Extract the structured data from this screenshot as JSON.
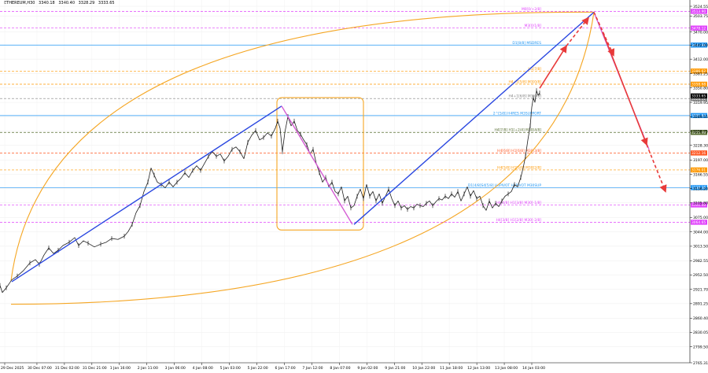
{
  "chart_data": {
    "type": "line",
    "header": {
      "symbol": "ETHEREUM,H30",
      "values": [
        "3340.18",
        "3340.40",
        "3328.29",
        "3333.65"
      ]
    },
    "ylim": [
      2765.31,
      3524.55
    ],
    "y_ticks": [
      "3524.55",
      "3503.75",
      "3470.00",
      "3442.00",
      "3412.00",
      "3381.25",
      "3350.80",
      "3319.95",
      "3289.55",
      "3258.75",
      "3228.30",
      "3197.00",
      "3166.55",
      "3136.20",
      "3105.80",
      "3075.00",
      "3044.00",
      "3013.50",
      "2982.55",
      "2952.50",
      "2921.70",
      "2891.25",
      "2860.40",
      "2830.05",
      "2799.50",
      "2765.31"
    ],
    "x_ticks": [
      "29 Dec 2025",
      "30 Dec 07:00",
      "31 Dec 02:00",
      "31 Dec 21:00",
      "1 Jan 16:00",
      "2 Jan 11:00",
      "3 Jan 06:00",
      "4 Jan 08:00",
      "5 Jan 03:00",
      "5 Jan 22:00",
      "6 Jan 17:00",
      "7 Jan 12:00",
      "8 Jan 07:00",
      "9 Jan 02:00",
      "9 Jan 21:00",
      "10 Jan 22:00",
      "11 Jan 18:00",
      "12 Jan 13:00",
      "13 Jan 08:00",
      "14 Jan 03:00"
    ],
    "levels": [
      {
        "label": "M0[0/+2/8]",
        "price": 3513.9,
        "color": "#e040fb",
        "badge": "3513.90",
        "style": "dashed"
      },
      {
        "label": "M3[0/1/8]",
        "price": 3478.12,
        "color": "#e040fb",
        "badge": "3478.12",
        "style": "dashed"
      },
      {
        "label": "D1[8/8] MSDRES",
        "price": 3441.98,
        "color": "#2196f3",
        "badge": "3441.98",
        "style": "solid"
      },
      {
        "label": "H1[7/8]",
        "price": 3386.62,
        "color": "#ff9800",
        "badge": "3386.62",
        "style": "dashed"
      },
      {
        "label": "H4+1[5/8] M3[0/8]",
        "price": 3358.68,
        "color": "#ff9800",
        "badge": "3358.68",
        "style": "dashed"
      },
      {
        "label": "H4+1[6/8] M3[0/8]",
        "price": 3328.11,
        "color": "#808080",
        "badge": "3328.11",
        "style": "dashed"
      },
      {
        "label": "2^[5/8] H4RES M3SUPPORT",
        "price": 3291.84,
        "color": "#2196f3",
        "badge": "3291.84",
        "style": "solid"
      },
      {
        "label": "H4[7/8] H1[+2/4] M30[4/8]",
        "price": 3255.98,
        "color": "#556b2f",
        "badge": "3255.98",
        "style": "dashed"
      },
      {
        "label": "H4[6/8] H1[6/8] M30[3/8]",
        "price": 3212.16,
        "color": "#ff5722",
        "badge": "3212.16",
        "style": "dashed"
      },
      {
        "label": "H4[5/8] H1[5/8] M30[2/8]",
        "price": 3176.01,
        "color": "#ff9800",
        "badge": "3176.01",
        "style": "dashed"
      },
      {
        "label": "D1[4/8]S4[5/8] H4PIVOT H1PIVOT M30SUP",
        "price": 3138.36,
        "color": "#2196f3",
        "badge": "3138.36",
        "style": "solid"
      },
      {
        "label": "H4[4/8] H1[3/8] M30[-1/8]",
        "price": 3101.49,
        "color": "#e040fb",
        "badge": "3101.49",
        "style": "dashed"
      },
      {
        "label": "H4[3/8] H1[2/8] M30[-2/8]",
        "price": 3064.65,
        "color": "#e040fb",
        "badge": "3064.65",
        "style": "dashed"
      }
    ],
    "current_price": "3333.65",
    "series": [
      {
        "points": [
          [
            0,
            2930
          ],
          [
            3,
            2915
          ],
          [
            8,
            2925
          ],
          [
            15,
            2942
          ],
          [
            22,
            2950
          ],
          [
            30,
            2962
          ],
          [
            38,
            2978
          ],
          [
            45,
            2985
          ],
          [
            50,
            2975
          ],
          [
            56,
            2995
          ],
          [
            62,
            3010
          ],
          [
            68,
            2998
          ],
          [
            74,
            3005
          ],
          [
            80,
            3015
          ],
          [
            88,
            3022
          ],
          [
            95,
            3032
          ],
          [
            100,
            3015
          ],
          [
            106,
            3025
          ],
          [
            112,
            3020
          ],
          [
            120,
            3012
          ],
          [
            128,
            3018
          ],
          [
            135,
            3022
          ],
          [
            142,
            3030
          ],
          [
            150,
            3028
          ],
          [
            158,
            3035
          ],
          [
            163,
            3045
          ],
          [
            168,
            3060
          ],
          [
            173,
            3085
          ],
          [
            178,
            3100
          ],
          [
            183,
            3130
          ],
          [
            188,
            3150
          ],
          [
            192,
            3180
          ],
          [
            196,
            3165
          ],
          [
            200,
            3150
          ],
          [
            205,
            3145
          ],
          [
            210,
            3138
          ],
          [
            215,
            3150
          ],
          [
            220,
            3140
          ],
          [
            225,
            3150
          ],
          [
            230,
            3158
          ],
          [
            235,
            3170
          ],
          [
            240,
            3160
          ],
          [
            245,
            3175
          ],
          [
            250,
            3185
          ],
          [
            255,
            3175
          ],
          [
            260,
            3190
          ],
          [
            265,
            3205
          ],
          [
            270,
            3215
          ],
          [
            275,
            3205
          ],
          [
            280,
            3210
          ],
          [
            285,
            3195
          ],
          [
            290,
            3205
          ],
          [
            295,
            3220
          ],
          [
            300,
            3225
          ],
          [
            305,
            3215
          ],
          [
            310,
            3200
          ],
          [
            315,
            3235
          ],
          [
            320,
            3250
          ],
          [
            325,
            3260
          ],
          [
            330,
            3240
          ],
          [
            335,
            3245
          ],
          [
            340,
            3255
          ],
          [
            345,
            3248
          ],
          [
            350,
            3265
          ],
          [
            353,
            3280
          ],
          [
            356,
            3265
          ],
          [
            359,
            3215
          ],
          [
            362,
            3255
          ],
          [
            366,
            3290
          ],
          [
            370,
            3270
          ],
          [
            374,
            3280
          ],
          [
            378,
            3260
          ],
          [
            382,
            3252
          ],
          [
            386,
            3240
          ],
          [
            390,
            3230
          ],
          [
            394,
            3210
          ],
          [
            398,
            3220
          ],
          [
            402,
            3190
          ],
          [
            406,
            3170
          ],
          [
            410,
            3150
          ],
          [
            414,
            3160
          ],
          [
            418,
            3140
          ],
          [
            422,
            3150
          ],
          [
            426,
            3130
          ],
          [
            430,
            3125
          ],
          [
            434,
            3140
          ],
          [
            438,
            3110
          ],
          [
            442,
            3120
          ],
          [
            446,
            3095
          ],
          [
            450,
            3100
          ],
          [
            454,
            3120
          ],
          [
            458,
            3135
          ],
          [
            462,
            3115
          ],
          [
            466,
            3145
          ],
          [
            470,
            3120
          ],
          [
            474,
            3130
          ],
          [
            478,
            3110
          ],
          [
            482,
            3125
          ],
          [
            486,
            3105
          ],
          [
            490,
            3120
          ],
          [
            494,
            3135
          ],
          [
            498,
            3115
          ],
          [
            502,
            3100
          ],
          [
            506,
            3110
          ],
          [
            510,
            3095
          ],
          [
            514,
            3100
          ],
          [
            518,
            3092
          ],
          [
            522,
            3098
          ],
          [
            526,
            3095
          ],
          [
            530,
            3103
          ],
          [
            534,
            3100
          ],
          [
            538,
            3098
          ],
          [
            542,
            3105
          ],
          [
            546,
            3110
          ],
          [
            550,
            3100
          ],
          [
            554,
            3108
          ],
          [
            558,
            3115
          ],
          [
            562,
            3112
          ],
          [
            566,
            3120
          ],
          [
            570,
            3115
          ],
          [
            574,
            3125
          ],
          [
            578,
            3118
          ],
          [
            582,
            3130
          ],
          [
            586,
            3110
          ],
          [
            590,
            3125
          ],
          [
            594,
            3140
          ],
          [
            598,
            3120
          ],
          [
            602,
            3132
          ],
          [
            606,
            3115
          ],
          [
            610,
            3120
          ],
          [
            614,
            3100
          ],
          [
            618,
            3090
          ],
          [
            622,
            3110
          ],
          [
            626,
            3095
          ],
          [
            630,
            3105
          ],
          [
            634,
            3098
          ],
          [
            638,
            3110
          ],
          [
            642,
            3120
          ],
          [
            646,
            3125
          ],
          [
            650,
            3130
          ],
          [
            654,
            3145
          ],
          [
            658,
            3140
          ],
          [
            662,
            3160
          ],
          [
            665,
            3180
          ],
          [
            668,
            3205
          ],
          [
            671,
            3240
          ],
          [
            674,
            3270
          ],
          [
            676,
            3310
          ],
          [
            678,
            3330
          ],
          [
            680,
            3320
          ],
          [
            682,
            3345
          ],
          [
            684,
            3335
          ],
          [
            686,
            3340
          ]
        ]
      }
    ],
    "trendlines": [
      {
        "color": "#2a47e0",
        "points": [
          [
            15,
            2938
          ],
          [
            358,
            3312
          ]
        ]
      },
      {
        "color": "#2a47e0",
        "points": [
          [
            450,
            3060
          ],
          [
            755,
            3512
          ]
        ]
      },
      {
        "color": "#d45cd4",
        "points": [
          [
            358,
            3312
          ],
          [
            448,
            3060
          ]
        ]
      },
      {
        "color": "#d45cd4",
        "points": [
          [
            755,
            3512
          ],
          [
            825,
            3220
          ]
        ]
      }
    ],
    "projections": [
      {
        "color": "#e83a3a",
        "style": "solid",
        "points": [
          [
            686,
            3350
          ],
          [
            720,
            3440
          ]
        ]
      },
      {
        "color": "#e83a3a",
        "style": "dashed",
        "points": [
          [
            720,
            3440
          ],
          [
            748,
            3500
          ]
        ]
      },
      {
        "color": "#e83a3a",
        "style": "dashed",
        "points": [
          [
            755,
            3512
          ],
          [
            780,
            3420
          ]
        ]
      },
      {
        "color": "#e83a3a",
        "style": "solid",
        "points": [
          [
            766,
            3470
          ],
          [
            822,
            3230
          ]
        ]
      },
      {
        "color": "#e83a3a",
        "style": "dashed",
        "points": [
          [
            822,
            3230
          ],
          [
            846,
            3130
          ]
        ]
      }
    ],
    "shapes": {
      "box": {
        "color": "#f5a623",
        "x1": 352,
        "x2": 462,
        "y_top": 3330,
        "y_bottom": 3048
      },
      "arc_color": "#f5a623"
    },
    "grid": true
  }
}
